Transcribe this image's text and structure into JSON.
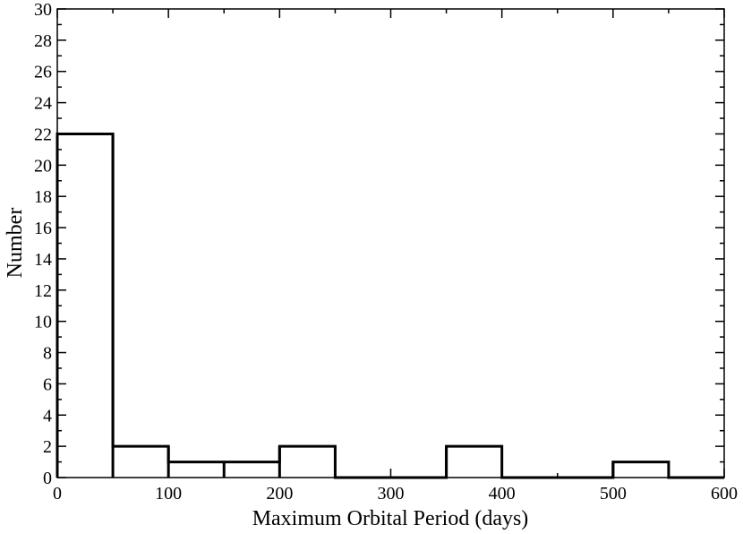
{
  "chart_data": {
    "type": "bar",
    "subtype": "histogram",
    "bin_width": 50,
    "bins": [
      {
        "x0": 0,
        "x1": 50,
        "count": 22
      },
      {
        "x0": 50,
        "x1": 100,
        "count": 2
      },
      {
        "x0": 100,
        "x1": 150,
        "count": 1
      },
      {
        "x0": 150,
        "x1": 200,
        "count": 1
      },
      {
        "x0": 200,
        "x1": 250,
        "count": 2
      },
      {
        "x0": 250,
        "x1": 300,
        "count": 0
      },
      {
        "x0": 300,
        "x1": 350,
        "count": 0
      },
      {
        "x0": 350,
        "x1": 400,
        "count": 2
      },
      {
        "x0": 400,
        "x1": 450,
        "count": 0
      },
      {
        "x0": 450,
        "x1": 500,
        "count": 0
      },
      {
        "x0": 500,
        "x1": 550,
        "count": 1
      },
      {
        "x0": 550,
        "x1": 600,
        "count": 0
      }
    ],
    "title": "",
    "xlabel": "Maximum Orbital Period (days)",
    "ylabel": "Number",
    "xlim": [
      0,
      600
    ],
    "ylim": [
      0,
      30
    ],
    "x_ticks": [
      "0",
      "100",
      "200",
      "300",
      "400",
      "500",
      "600"
    ],
    "y_ticks": [
      "0",
      "2",
      "4",
      "6",
      "8",
      "10",
      "12",
      "14",
      "16",
      "18",
      "20",
      "22",
      "24",
      "26",
      "28",
      "30"
    ],
    "grid": false,
    "legend": "none",
    "colors": {
      "line": "#000000",
      "background": "#ffffff"
    }
  }
}
